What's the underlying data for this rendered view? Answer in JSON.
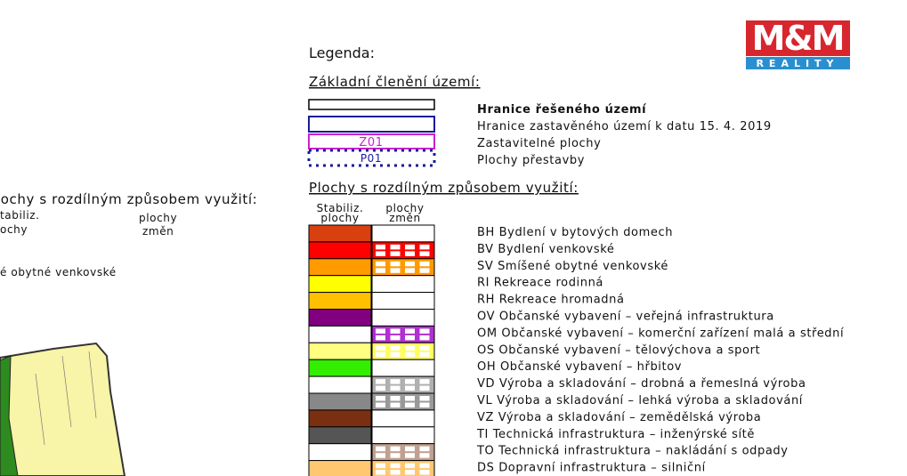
{
  "logo": {
    "main": "M&M",
    "sub": "REALITY"
  },
  "legend": {
    "title": "Legenda:"
  },
  "basic": {
    "title": "Základní členění území:",
    "box_labels": [
      "Z01",
      "P01"
    ],
    "items": [
      "Hranice řešeného území",
      "Hranice zastavěného území k datu 15. 4. 2019",
      "Zastavitelné plochy",
      "Plochy přestavby"
    ]
  },
  "usage": {
    "title": "Plochy s rozdílným způsobem využití:",
    "columns": [
      [
        "Stabiliz.",
        "plochy"
      ],
      [
        "plochy",
        "změn"
      ]
    ],
    "items": [
      "BH  Bydlení v bytových domech",
      "BV  Bydlení venkovské",
      "SV  Smíšené obytné venkovské",
      "RI  Rekreace rodinná",
      "RH  Rekreace hromadná",
      "OV  Občanské vybavení – veřejná infrastruktura",
      "OM  Občanské vybavení – komerční zařízení malá a střední",
      "OS  Občanské vybavení – tělovýchova a sport",
      "OH  Občanské vybavení – hřbitov",
      "VD  Výroba a skladování – drobná a řemeslná výroba",
      "VL  Výroba a skladování – lehká výroba a skladování",
      "VZ   Výroba a skladování – zemědělská výroba",
      "TI   Technická infrastruktura – inženýrské sítě",
      "TO  Technická infrastruktura – nakládání s odpady",
      "DS  Dopravní infrastruktura – silniční"
    ]
  },
  "left_fragment": {
    "title": "lochy s rozdílným způsobem využití:",
    "col1": [
      "tabiliz.",
      "ochy"
    ],
    "col2": [
      "plochy",
      "změn"
    ],
    "item": "é obytné venkovské"
  }
}
